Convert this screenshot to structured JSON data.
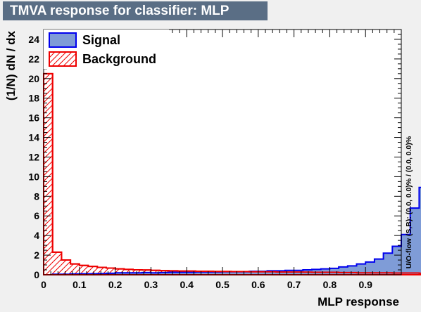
{
  "title": "TMVA response for classifier: MLP",
  "chart_data": {
    "type": "histogram",
    "xlabel": "MLP response",
    "ylabel": "(1/N) dN / dx",
    "side_label": "U/O-flow (S,B): (0.0, 0.0)% / (0.0, 0.0)%",
    "xlim": [
      0,
      1
    ],
    "ylim": [
      0,
      25
    ],
    "x_ticks": [
      "0",
      "0.1",
      "0.2",
      "0.3",
      "0.4",
      "0.5",
      "0.6",
      "0.7",
      "0.8",
      "0.9"
    ],
    "x_tick_values": [
      0,
      0.1,
      0.2,
      0.3,
      0.4,
      0.5,
      0.6,
      0.7,
      0.8,
      0.9
    ],
    "y_ticks": [
      0,
      2,
      4,
      6,
      8,
      10,
      12,
      14,
      16,
      18,
      20,
      22,
      24
    ],
    "bin_edges_start": 0,
    "bin_width": 0.025,
    "series": [
      {
        "name": "Signal",
        "fill": "#7f9cd7",
        "line": "#0000ee",
        "values": [
          0.0,
          0.05,
          0.05,
          0.08,
          0.1,
          0.1,
          0.12,
          0.15,
          0.2,
          0.2,
          0.2,
          0.22,
          0.2,
          0.22,
          0.25,
          0.25,
          0.25,
          0.28,
          0.28,
          0.28,
          0.3,
          0.3,
          0.3,
          0.35,
          0.35,
          0.4,
          0.4,
          0.45,
          0.45,
          0.5,
          0.55,
          0.6,
          0.65,
          0.8,
          0.9,
          1.1,
          1.3,
          1.6,
          2.2,
          2.9,
          4.1,
          6.8,
          8.9
        ]
      },
      {
        "name": "Background",
        "fill": "hatch",
        "line": "#ee0000",
        "values": [
          20.5,
          2.3,
          1.5,
          1.1,
          0.95,
          0.85,
          0.75,
          0.68,
          0.6,
          0.55,
          0.5,
          0.48,
          0.45,
          0.42,
          0.4,
          0.38,
          0.38,
          0.35,
          0.35,
          0.33,
          0.33,
          0.32,
          0.32,
          0.3,
          0.3,
          0.3,
          0.28,
          0.28,
          0.28,
          0.27,
          0.25,
          0.25,
          0.25,
          0.22,
          0.22,
          0.2,
          0.2,
          0.2,
          0.2,
          0.18,
          0.18,
          0.18,
          0.15
        ]
      }
    ],
    "legend": {
      "position": "top-left",
      "entries": [
        "Signal",
        "Background"
      ]
    }
  }
}
